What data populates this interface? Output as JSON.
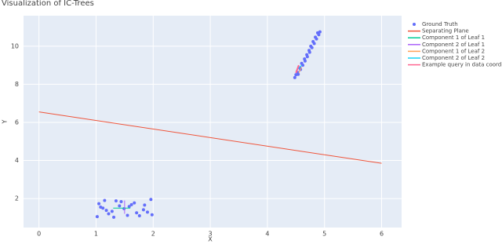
{
  "chart_data": {
    "type": "scatter",
    "title": "Visualization of IC-Trees",
    "x_label": "X",
    "y_label": "Y",
    "xlim": [
      -0.27,
      6.35
    ],
    "ylim": [
      0.48,
      11.6
    ],
    "xticks": [
      0,
      1,
      2,
      3,
      4,
      5,
      6
    ],
    "yticks": [
      2,
      4,
      6,
      8,
      10
    ],
    "grid": true,
    "legend": "outside-right",
    "series": [
      {
        "name": "Ground Truth",
        "color": "#636efa",
        "mode": "markers",
        "x": [
          1.02,
          1.15,
          1.28,
          1.41,
          1.55,
          1.67,
          1.83,
          1.96,
          1.08,
          1.22,
          1.35,
          1.49,
          1.62,
          1.76,
          1.9,
          1.05,
          1.18,
          1.31,
          1.44,
          1.58,
          1.71,
          1.85,
          1.98,
          1.12,
          4.48,
          4.54,
          4.53,
          4.58,
          4.57,
          4.62,
          4.6,
          4.66,
          4.65,
          4.7,
          4.69,
          4.74,
          4.73,
          4.78,
          4.76,
          4.82,
          4.8,
          4.86,
          4.84,
          4.9,
          4.88,
          4.5,
          4.92
        ],
        "y": [
          1.05,
          1.9,
          1.33,
          1.62,
          1.12,
          1.77,
          1.41,
          1.95,
          1.55,
          1.2,
          1.88,
          1.47,
          1.68,
          1.1,
          1.29,
          1.73,
          1.38,
          1.02,
          1.84,
          1.58,
          1.25,
          1.66,
          1.15,
          1.5,
          8.35,
          8.52,
          8.62,
          8.78,
          8.86,
          9.0,
          9.1,
          9.22,
          9.33,
          9.45,
          9.55,
          9.68,
          9.78,
          9.92,
          10.0,
          10.14,
          10.24,
          10.38,
          10.47,
          10.6,
          10.7,
          8.5,
          10.75
        ]
      },
      {
        "name": "Separating Plane",
        "color": "#EF553B",
        "mode": "lines",
        "x": [
          0,
          6
        ],
        "y": [
          6.55,
          3.85
        ]
      },
      {
        "name": "Component 1 of Leaf 1",
        "color": "#00cc96",
        "mode": "lines",
        "x": [
          1.3,
          1.6
        ],
        "y": [
          1.5,
          1.5
        ]
      },
      {
        "name": "Component 2 of Leaf 1",
        "color": "#ab63fa",
        "mode": "lines",
        "x": [
          1.5,
          1.5
        ],
        "y": [
          1.2,
          1.9
        ]
      },
      {
        "name": "Component 1 of Leaf 2",
        "color": "#FFA15A",
        "mode": "lines",
        "x": [
          4.55,
          4.6
        ],
        "y": [
          8.6,
          8.9
        ]
      },
      {
        "name": "Component 2 of Leaf 2",
        "color": "#19d3f3",
        "mode": "lines",
        "x": [
          4.5,
          4.6
        ],
        "y": [
          8.7,
          9.0
        ]
      },
      {
        "name": "Example query in data coordinates",
        "color": "#FF6692",
        "mode": "lines",
        "x": [
          4.5,
          4.55
        ],
        "y": [
          8.6,
          9.0
        ]
      }
    ]
  }
}
